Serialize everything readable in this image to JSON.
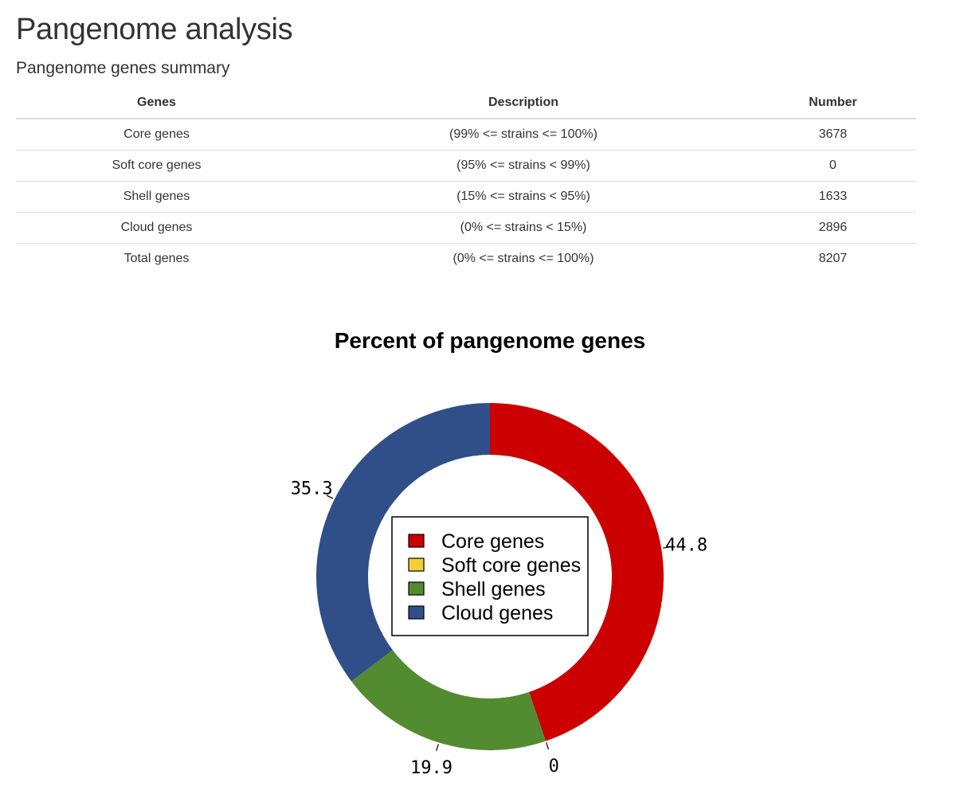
{
  "page": {
    "title": "Pangenome analysis",
    "section_title": "Pangenome genes summary"
  },
  "table": {
    "headers": [
      "Genes",
      "Description",
      "Number"
    ],
    "rows": [
      [
        "Core genes",
        "(99% <= strains <= 100%)",
        "3678"
      ],
      [
        "Soft core genes",
        "(95% <= strains < 99%)",
        "0"
      ],
      [
        "Shell genes",
        "(15% <= strains < 95%)",
        "1633"
      ],
      [
        "Cloud genes",
        "(0% <= strains < 15%)",
        "2896"
      ],
      [
        "Total genes",
        "(0% <= strains <= 100%)",
        "8207"
      ]
    ]
  },
  "chart_data": {
    "type": "pie",
    "title": "Percent of pangenome genes",
    "categories": [
      "Core genes",
      "Soft core genes",
      "Shell genes",
      "Cloud genes"
    ],
    "values": [
      44.8,
      0,
      19.9,
      35.3
    ],
    "value_labels": [
      "44.8",
      "0",
      "19.9",
      "35.3"
    ],
    "colors": [
      "#CC0000",
      "#F2D035",
      "#538B30",
      "#304F88"
    ],
    "donut": true,
    "legend_position": "center",
    "start_angle": "12 o'clock",
    "direction": "clockwise"
  }
}
